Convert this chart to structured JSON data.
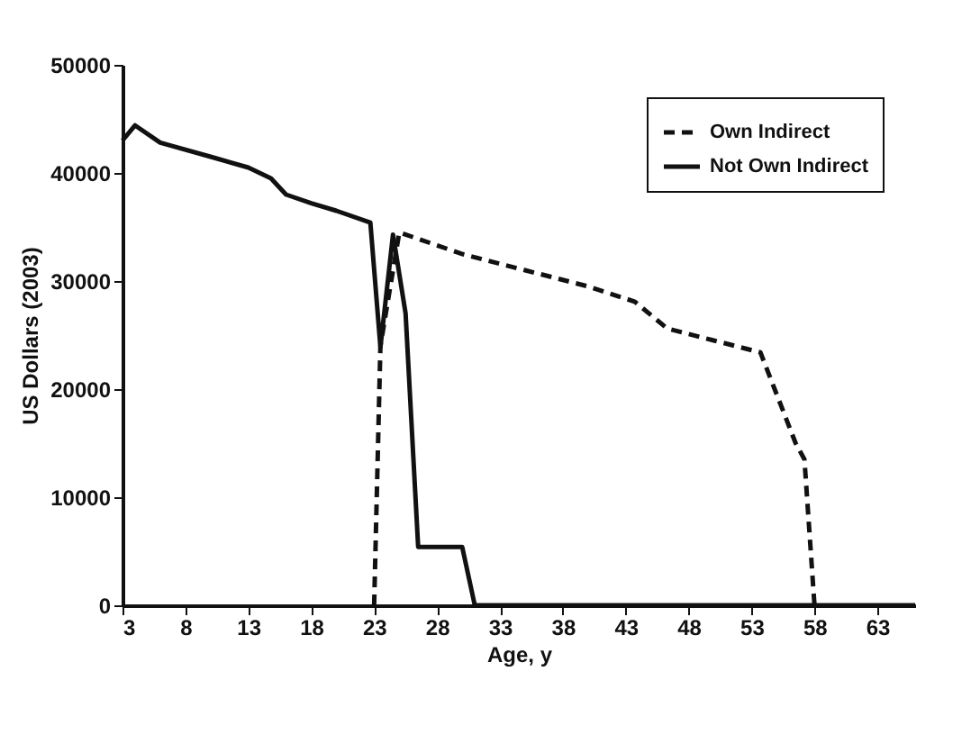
{
  "chart_data": {
    "type": "line",
    "xlabel": "Age, y",
    "ylabel": "US Dollars (2003)",
    "xlim": [
      3,
      66
    ],
    "xticks": [
      3,
      8,
      13,
      18,
      23,
      28,
      33,
      38,
      43,
      48,
      53,
      58,
      63
    ],
    "ylim": [
      0,
      50000
    ],
    "yticks": [
      0,
      10000,
      20000,
      30000,
      40000,
      50000
    ],
    "grid": false,
    "legend": "top right",
    "series": [
      {
        "name": "Own Indirect",
        "color": "#111111",
        "line_style": "dashed",
        "x": [
          23,
          23.5,
          25,
          30,
          35,
          40,
          43.7,
          46.3,
          50,
          53.7,
          56.5,
          57.2,
          58
        ],
        "values": [
          0,
          24000,
          34500,
          32500,
          31000,
          29500,
          28100,
          25600,
          24500,
          23400,
          15000,
          13500,
          0
        ]
      },
      {
        "name": "Not Own Indirect",
        "color": "#111111",
        "line_style": "solid",
        "x": [
          3,
          4,
          6,
          10,
          13,
          14.8,
          16,
          18,
          20,
          22.7,
          23.5,
          24.5,
          25.5,
          26.5,
          28,
          30,
          31,
          40,
          50,
          60,
          66
        ],
        "values": [
          43000,
          44400,
          42800,
          41500,
          40500,
          39500,
          38000,
          37200,
          36500,
          35400,
          23900,
          34300,
          27000,
          5400,
          5400,
          5400,
          0,
          0,
          0,
          0,
          0
        ]
      }
    ]
  }
}
